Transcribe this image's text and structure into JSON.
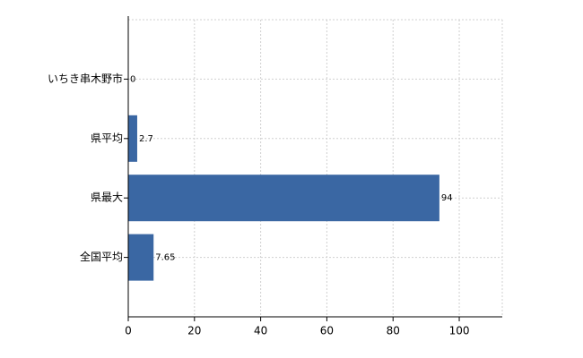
{
  "chart_data": {
    "type": "hbar",
    "categories": [
      "いちき串木野市",
      "県平均",
      "県最大",
      "全国平均"
    ],
    "values": [
      0,
      2.7,
      94,
      7.65
    ],
    "color": "#3a67a3",
    "xlim": [
      0,
      113
    ],
    "xticks": [
      0,
      20,
      40,
      60,
      80,
      100
    ],
    "grid": true
  }
}
